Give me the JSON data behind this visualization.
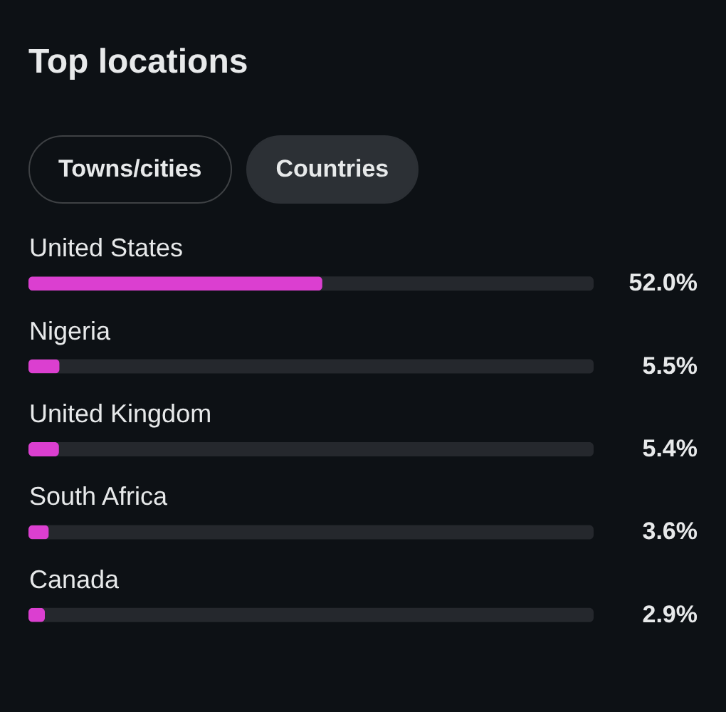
{
  "chart_data": {
    "type": "bar",
    "orientation": "horizontal",
    "title": "Top locations",
    "annotations": [
      "Towns/cities",
      "Countries"
    ],
    "categories": [
      "United States",
      "Nigeria",
      "United Kingdom",
      "South Africa",
      "Canada"
    ],
    "values": [
      52.0,
      5.5,
      5.4,
      3.6,
      2.9
    ],
    "value_labels": [
      "52.0%",
      "5.5%",
      "5.4%",
      "3.6%",
      "2.9%"
    ],
    "color": "#db3fd0",
    "xlim": [
      0,
      100
    ],
    "tick_labels": "y"
  }
}
